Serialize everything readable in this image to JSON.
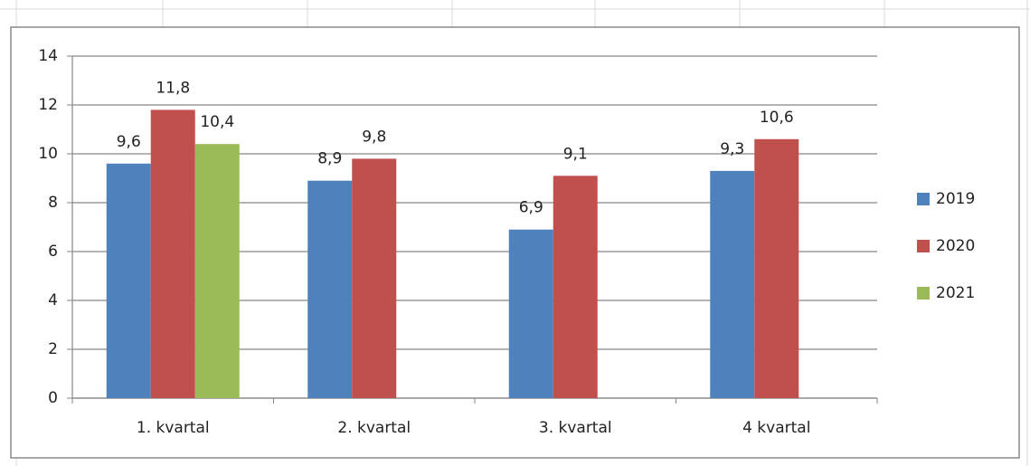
{
  "chart_data": {
    "type": "bar",
    "categories": [
      "1. kvartal",
      "2. kvartal",
      "3. kvartal",
      "4 kvartal"
    ],
    "series": [
      {
        "name": "2019",
        "color": "#4f81bd",
        "values": [
          9.6,
          8.9,
          6.9,
          9.3
        ],
        "value_labels": [
          "9,6",
          "8,9",
          "6,9",
          "9,3"
        ]
      },
      {
        "name": "2020",
        "color": "#c0504d",
        "values": [
          11.8,
          9.8,
          9.1,
          10.6
        ],
        "value_labels": [
          "11,8",
          "9,8",
          "9,1",
          "10,6"
        ]
      },
      {
        "name": "2021",
        "color": "#9bbb59",
        "values": [
          10.4,
          null,
          null,
          null
        ],
        "value_labels": [
          "10,4",
          null,
          null,
          null
        ]
      }
    ],
    "ylim": [
      0,
      14
    ],
    "yticks": [
      0,
      2,
      4,
      6,
      8,
      10,
      12,
      14
    ],
    "grid": true,
    "legend": "right"
  }
}
